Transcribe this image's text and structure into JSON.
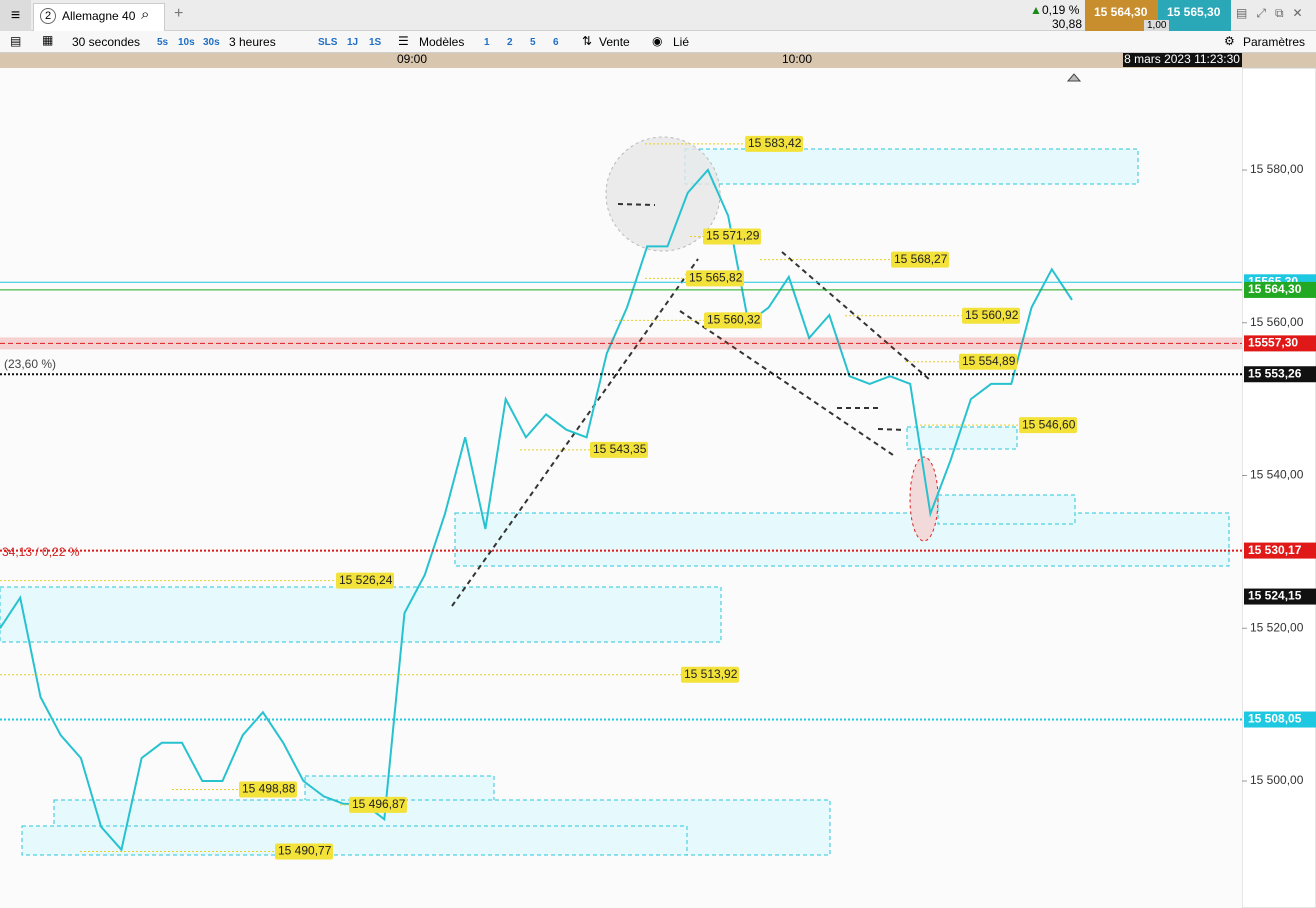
{
  "tabs": {
    "number": "2",
    "instrument": "Allemagne 40"
  },
  "quote": {
    "change": "0,19 %",
    "points": "30,88",
    "sell": "15 564,30",
    "spread": "1,00",
    "buy": "15 565,30"
  },
  "toolbar": {
    "period": "30 secondes",
    "quick_periods": [
      "5s",
      "10s",
      "30s"
    ],
    "range": "3 heures",
    "ranges": [
      "SLS",
      "1J",
      "1S"
    ],
    "models": "Modèles",
    "slots": [
      "1",
      "2",
      "5",
      "6"
    ],
    "sell_mode": "Vente",
    "link": "Lié",
    "settings": "Paramètres"
  },
  "chart_data": {
    "type": "line",
    "x_labels": [
      "09:00",
      "10:00"
    ],
    "timestamp": "8 mars 2023 11:23:30",
    "ylim": [
      15483.37,
      15593.36
    ],
    "yticks": [
      {
        "value": 15580,
        "label": "15 580,00"
      },
      {
        "value": 15560,
        "label": "15 560,00"
      },
      {
        "value": 15540,
        "label": "15 540,00"
      },
      {
        "value": 15520,
        "label": "15 520,00"
      },
      {
        "value": 15500,
        "label": "15 500,00"
      }
    ],
    "series": [
      {
        "color": "#27c2cf",
        "values": [
          15520,
          15524,
          15511,
          15506,
          15503,
          15494,
          15491,
          15503,
          15505,
          15505,
          15500,
          15500,
          15506,
          15509,
          15505,
          15500,
          15498,
          15497,
          15497,
          15495,
          15522,
          15527,
          15535,
          15545,
          15533,
          15550,
          15545,
          15548,
          15546,
          15545,
          15556,
          15562,
          15570,
          15570,
          15577,
          15580,
          15574,
          15560,
          15562,
          15566,
          15558,
          15561,
          15553,
          15552,
          15553,
          15552,
          15535,
          15542,
          15550,
          15552,
          15552,
          15562,
          15567,
          15563
        ]
      }
    ],
    "price_labels": [
      {
        "value": 15583.42,
        "label": "15 583,42"
      },
      {
        "value": 15571.29,
        "label": "15 571,29"
      },
      {
        "value": 15568.27,
        "label": "15 568,27"
      },
      {
        "value": 15565.82,
        "label": "15 565,82"
      },
      {
        "value": 15560.32,
        "label": "15 560,32"
      },
      {
        "value": 15560.92,
        "label": "15 560,92"
      },
      {
        "value": 15554.89,
        "label": "15 554,89"
      },
      {
        "value": 15546.6,
        "label": "15 546,60"
      },
      {
        "value": 15543.35,
        "label": "15 543,35"
      },
      {
        "value": 15526.24,
        "label": "15 526,24"
      },
      {
        "value": 15513.92,
        "label": "15 513,92"
      },
      {
        "value": 15498.88,
        "label": "15 498,88"
      },
      {
        "value": 15496.87,
        "label": "15 496,87"
      },
      {
        "value": 15490.77,
        "label": "15 490,77"
      }
    ],
    "level_markers": [
      {
        "value": 15565.3,
        "label": "15565,30",
        "color": "#1ec8e0",
        "line": "solid"
      },
      {
        "value": 15564.3,
        "label": "15 564,30",
        "color": "#22a822",
        "line": "solid"
      },
      {
        "value": 15557.3,
        "label": "15557,30",
        "color": "#e01818",
        "line": "band"
      },
      {
        "value": 15553.26,
        "label": "15 553,26",
        "color": "#111111",
        "line": "dotted"
      },
      {
        "value": 15530.17,
        "label": "15 530,17",
        "color": "#e01818",
        "line": "dotted"
      },
      {
        "value": 15524.15,
        "label": "15 524,15",
        "color": "#111111",
        "line": "none"
      },
      {
        "value": 15508.05,
        "label": "15 508,05",
        "color": "#1ec8e0",
        "line": "dotted"
      }
    ],
    "annotations": [
      "(23,60 %)",
      "34,13 / 0,22 %"
    ]
  }
}
